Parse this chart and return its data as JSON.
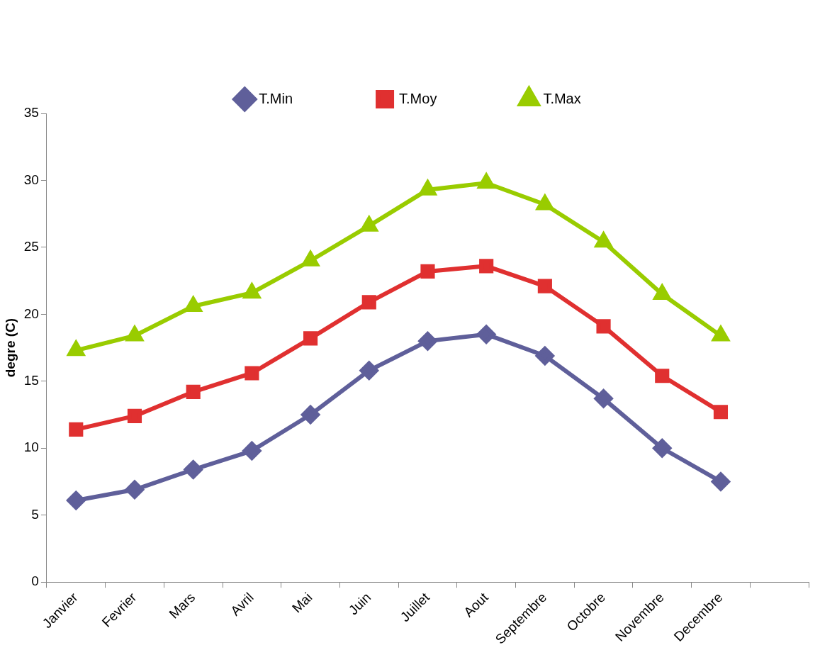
{
  "chart_data": {
    "type": "line",
    "ylabel": "degre (C)",
    "categories": [
      "Janvier",
      "Fevrier",
      "Mars",
      "Avril",
      "Mai",
      "Juin",
      "Juillet",
      "Aout",
      "Septembre",
      "Octobre",
      "Novembre",
      "Decembre",
      null
    ],
    "series": [
      {
        "name": "T.Min",
        "color": "#5f5f9a",
        "marker": "diamond",
        "values": [
          6.1,
          6.9,
          8.4,
          9.8,
          12.5,
          15.8,
          18.0,
          18.5,
          16.9,
          13.7,
          10.0,
          7.5,
          null
        ]
      },
      {
        "name": "T.Moy",
        "color": "#e03030",
        "marker": "square",
        "values": [
          11.4,
          12.4,
          14.2,
          15.6,
          18.2,
          20.9,
          23.2,
          23.6,
          22.1,
          19.1,
          15.4,
          12.7,
          null
        ]
      },
      {
        "name": "T.Max",
        "color": "#99cc00",
        "marker": "triangle",
        "values": [
          17.3,
          18.4,
          20.6,
          21.6,
          24.0,
          26.6,
          29.3,
          29.8,
          28.2,
          25.4,
          21.5,
          18.4,
          null
        ]
      }
    ],
    "ylim": [
      0,
      35
    ],
    "yticks": [
      0,
      5,
      10,
      15,
      20,
      25,
      30,
      35
    ],
    "grid": false,
    "legend": "top",
    "line_style": "solid"
  }
}
